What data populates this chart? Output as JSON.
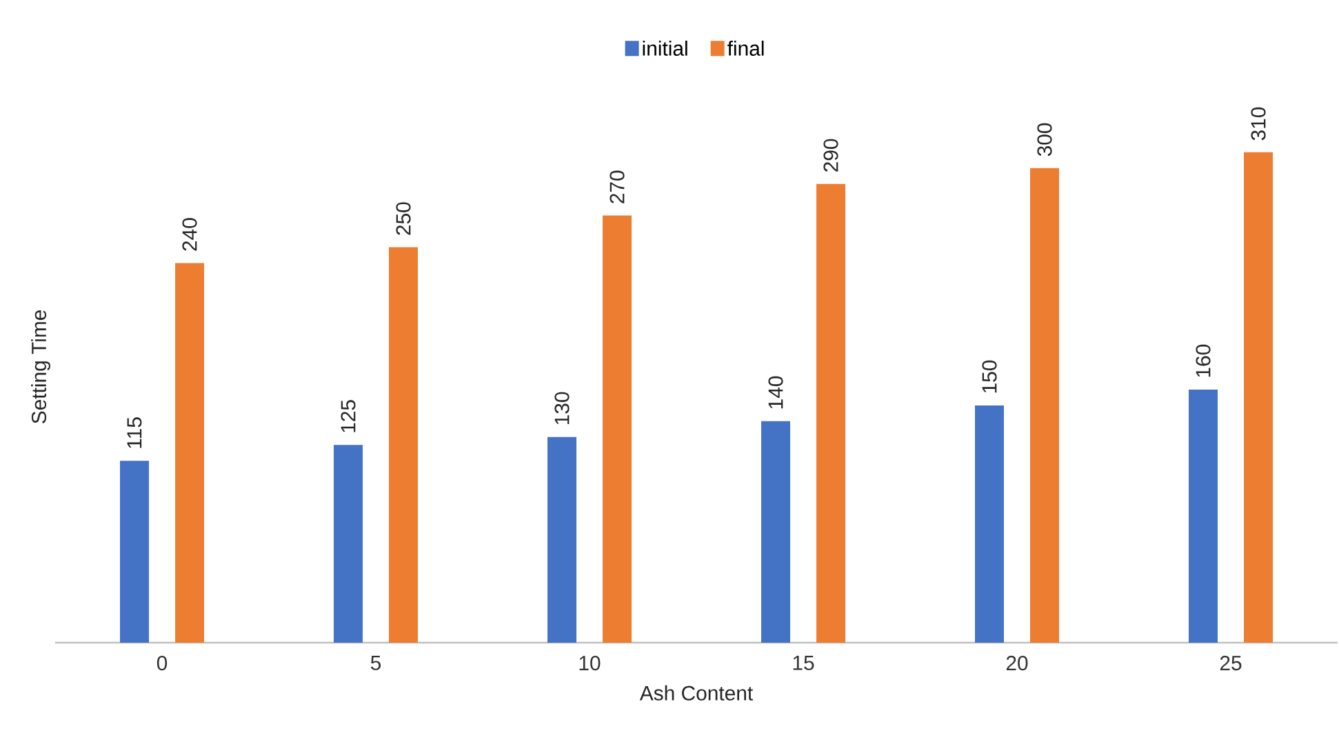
{
  "chart_data": {
    "type": "bar",
    "xlabel": "Ash Content",
    "ylabel": "Setting Time",
    "categories": [
      "0",
      "5",
      "10",
      "15",
      "20",
      "25"
    ],
    "series": [
      {
        "name": "initial",
        "color": "#4472c4",
        "values": [
          115,
          125,
          130,
          140,
          150,
          160
        ]
      },
      {
        "name": "final",
        "color": "#ed7d31",
        "values": [
          240,
          250,
          270,
          290,
          300,
          310
        ]
      }
    ],
    "data_labels": true,
    "legend": "top"
  }
}
